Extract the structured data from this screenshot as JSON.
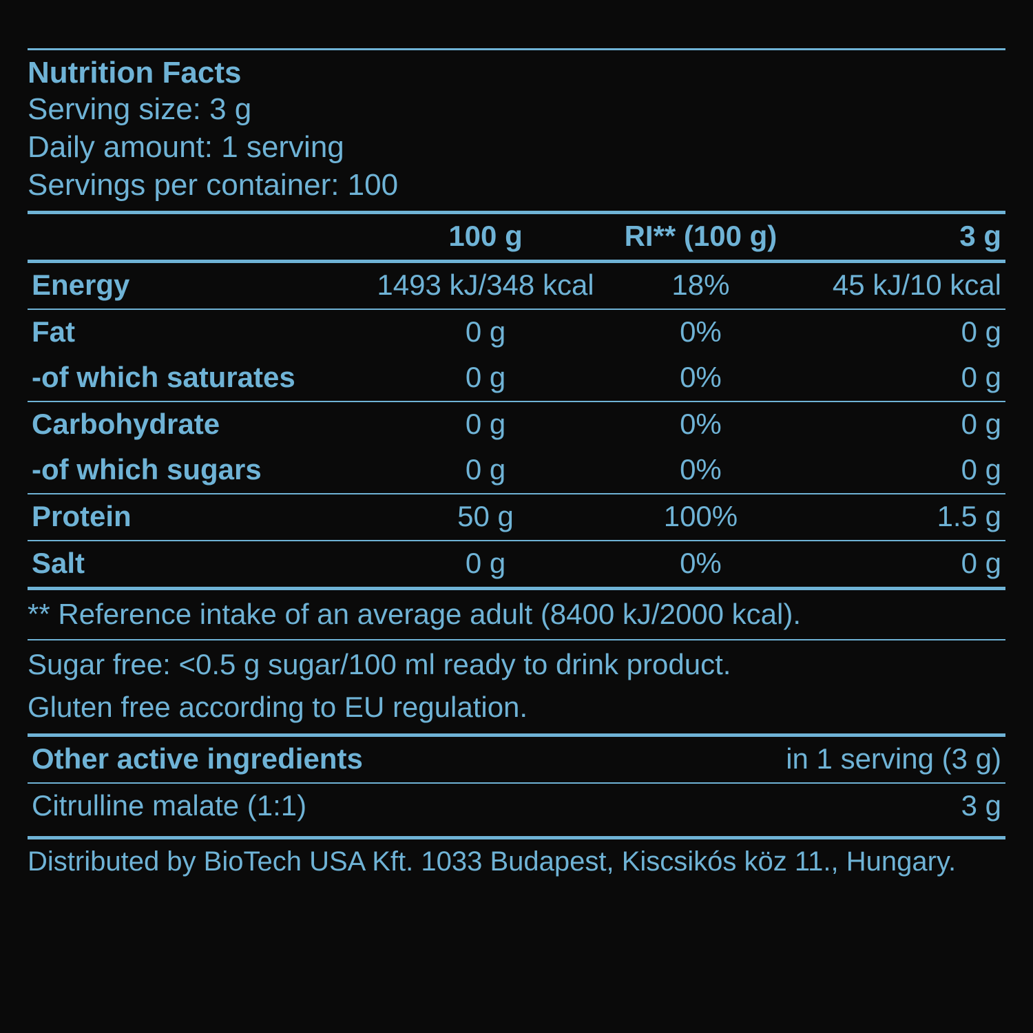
{
  "colors": {
    "background": "#0a0a0a",
    "text": "#6fb3d6",
    "rule": "#6fb3d6"
  },
  "typography": {
    "font_family": "Arial, Helvetica, sans-serif",
    "base_fontsize_pt": 32,
    "bold_weight": 700
  },
  "header": {
    "title": "Nutrition Facts",
    "serving_size": "Serving size: 3 g",
    "daily_amount": "Daily amount: 1 serving",
    "servings_per_container": "Servings per container: 100"
  },
  "columns": {
    "c1": "",
    "c2": "100 g",
    "c3": "RI** (100 g)",
    "c4": "3 g"
  },
  "rows": [
    {
      "label": "Energy",
      "v100": "1493 kJ/348 kcal",
      "ri": "18%",
      "v3": "45 kJ/10 kcal",
      "border": "thin",
      "bold": true
    },
    {
      "label": "Fat",
      "v100": "0 g",
      "ri": "0%",
      "v3": "0 g",
      "border": "none",
      "bold": true
    },
    {
      "label": "-of which saturates",
      "v100": "0 g",
      "ri": "0%",
      "v3": "0 g",
      "border": "thin",
      "bold": true
    },
    {
      "label": "Carbohydrate",
      "v100": "0 g",
      "ri": "0%",
      "v3": "0 g",
      "border": "none",
      "bold": true
    },
    {
      "label": "-of which sugars",
      "v100": "0 g",
      "ri": "0%",
      "v3": "0 g",
      "border": "thin",
      "bold": true
    },
    {
      "label": "Protein",
      "v100": "50 g",
      "ri": "100%",
      "v3": "1.5 g",
      "border": "thin",
      "bold": true
    },
    {
      "label": "Salt",
      "v100": "0 g",
      "ri": "0%",
      "v3": "0 g",
      "border": "thick",
      "bold": true
    }
  ],
  "footnotes": {
    "ri": "** Reference intake of an average adult (8400 kJ/2000 kcal).",
    "sugar_free": "Sugar free: <0.5 g sugar/100 ml ready to drink product.",
    "gluten_free": "Gluten free according to EU regulation."
  },
  "ingredients": {
    "header_left": "Other active ingredients",
    "header_right": "in 1 serving (3 g)",
    "rows": [
      {
        "name": "Citrulline malate (1:1)",
        "amount": "3 g"
      }
    ]
  },
  "distributor": "Distributed by BioTech USA Kft. 1033 Budapest, Kiscsikós köz 11., Hungary."
}
